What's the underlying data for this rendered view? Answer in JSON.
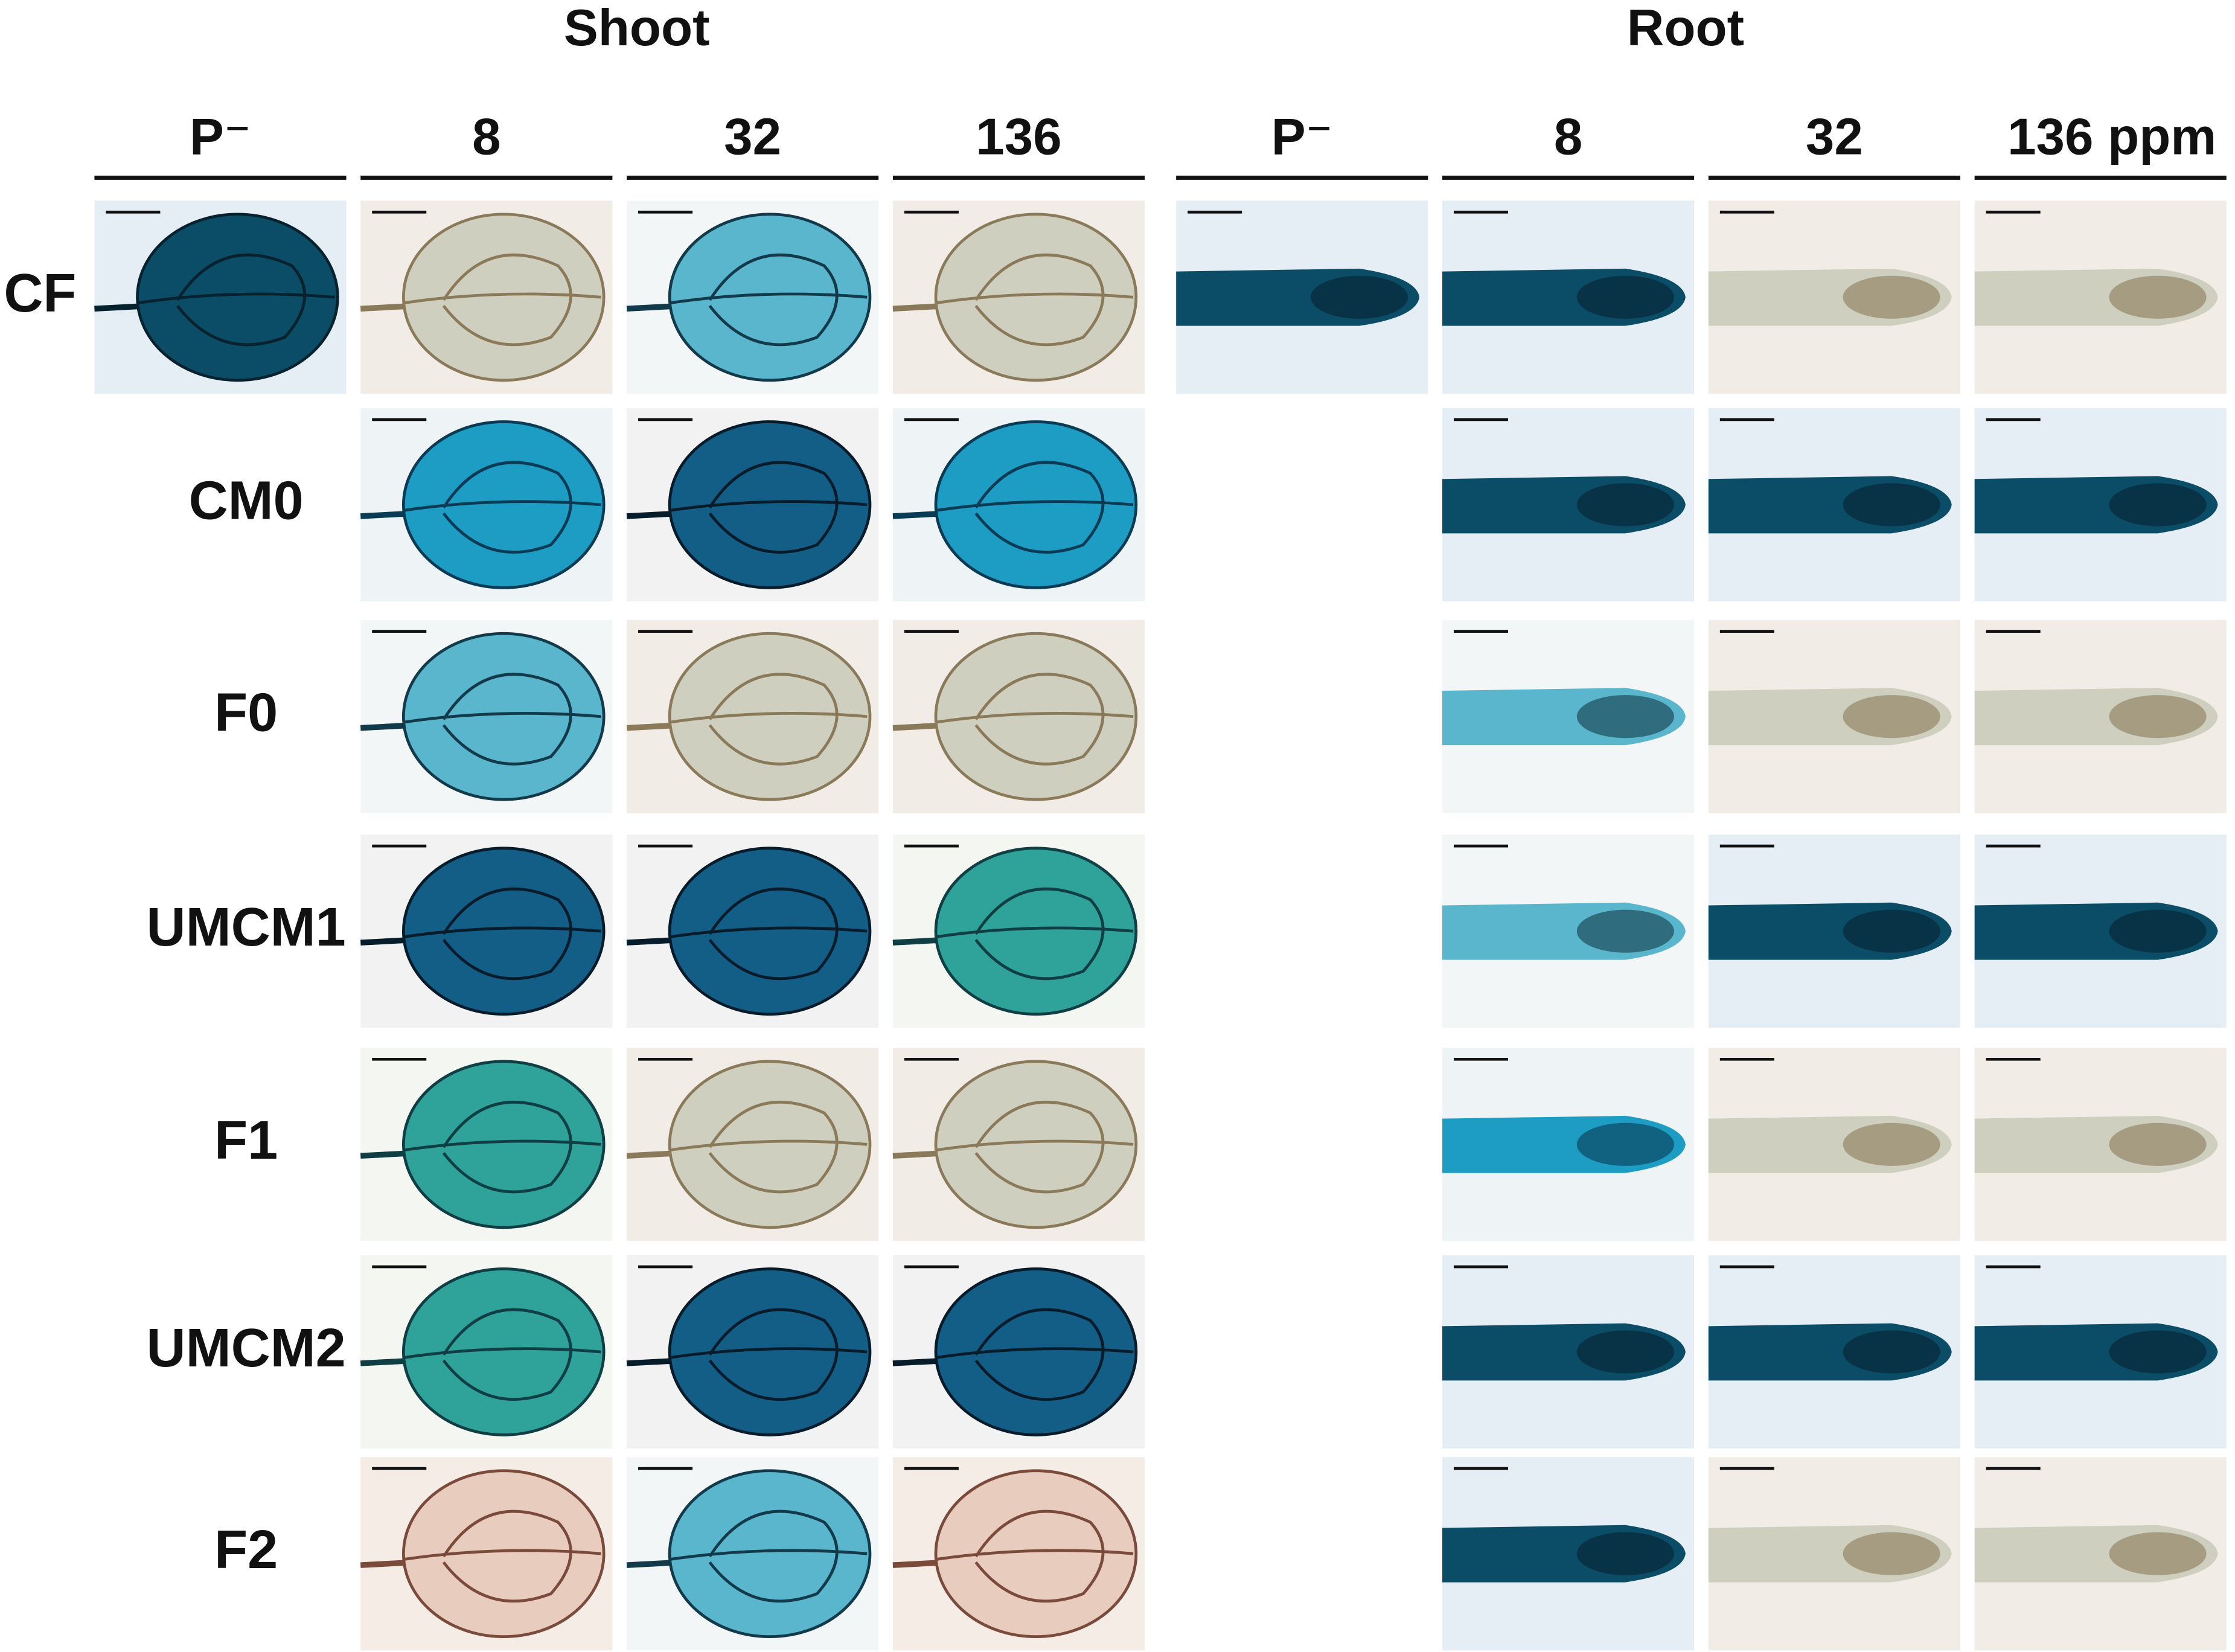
{
  "header": {
    "groups": [
      "Shoot",
      "Root"
    ],
    "columns": [
      "P⁻",
      "8",
      "32",
      "136",
      "P⁻",
      "8",
      "32",
      "136 ppm"
    ]
  },
  "rows": [
    "CF",
    "CM0",
    "F0",
    "UMCM1",
    "F1",
    "UMCM2",
    "F2"
  ]
}
